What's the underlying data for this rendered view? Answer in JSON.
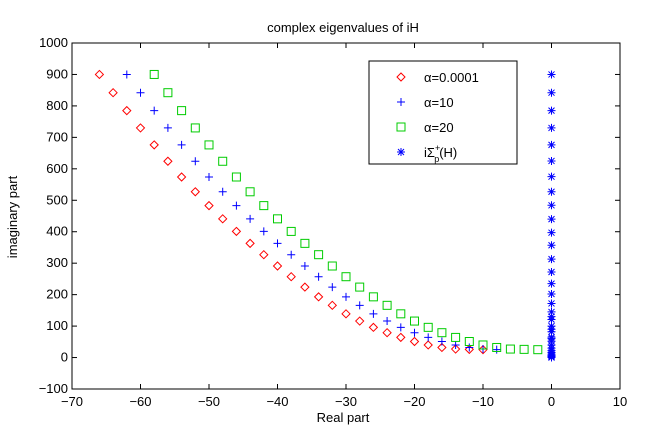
{
  "chart_data": {
    "type": "scatter",
    "title": "complex eigenvalues of iH",
    "xlabel": "Real part",
    "ylabel": "imaginary part",
    "xlim": [
      -70,
      10
    ],
    "ylim": [
      -100,
      1000
    ],
    "xticks": [
      "−70",
      "−60",
      "−50",
      "−40",
      "−30",
      "−20",
      "−10",
      "0",
      "10"
    ],
    "xtick_values": [
      -70,
      -60,
      -50,
      -40,
      -30,
      -20,
      -10,
      0,
      10
    ],
    "yticks": [
      "−100",
      "0",
      "100",
      "200",
      "300",
      "400",
      "500",
      "600",
      "700",
      "800",
      "900",
      "1000"
    ],
    "ytick_values": [
      -100,
      0,
      100,
      200,
      300,
      400,
      500,
      600,
      700,
      800,
      900,
      1000
    ],
    "grid": false,
    "legend_position": "top-right",
    "series": [
      {
        "name": "α=0.0001",
        "marker": "diamond",
        "color": "#ff0000",
        "x": [
          -66,
          -64,
          -62,
          -60,
          -58,
          -56,
          -54,
          -52,
          -50,
          -48,
          -46,
          -44,
          -42,
          -40,
          -38,
          -36,
          -34,
          -32,
          -30,
          -28,
          -26,
          -24,
          -22,
          -20,
          -18,
          -16,
          -14,
          -12,
          -10
        ],
        "y": [
          900,
          842,
          785,
          730,
          676,
          624,
          574,
          527,
          483,
          441,
          401,
          363,
          327,
          291,
          257,
          224,
          193,
          166,
          139,
          116,
          96,
          79,
          64,
          51,
          40,
          32,
          27,
          26,
          25
        ]
      },
      {
        "name": "α=10",
        "marker": "plus",
        "color": "#0000ff",
        "x": [
          -62,
          -60,
          -58,
          -56,
          -54,
          -52,
          -50,
          -48,
          -46,
          -44,
          -42,
          -40,
          -38,
          -36,
          -34,
          -32,
          -30,
          -28,
          -26,
          -24,
          -22,
          -20,
          -18,
          -16,
          -14,
          -12,
          -10,
          -8
        ],
        "y": [
          900,
          842,
          785,
          730,
          676,
          624,
          574,
          527,
          483,
          441,
          401,
          363,
          327,
          291,
          257,
          224,
          193,
          166,
          139,
          116,
          96,
          79,
          64,
          51,
          40,
          32,
          27,
          25
        ]
      },
      {
        "name": "α=20",
        "marker": "square",
        "color": "#00cc00",
        "x": [
          -58,
          -56,
          -54,
          -52,
          -50,
          -48,
          -46,
          -44,
          -42,
          -40,
          -38,
          -36,
          -34,
          -32,
          -30,
          -28,
          -26,
          -24,
          -22,
          -20,
          -18,
          -16,
          -14,
          -12,
          -10,
          -8,
          -6,
          -4,
          -2
        ],
        "y": [
          900,
          842,
          785,
          730,
          676,
          624,
          574,
          527,
          483,
          441,
          401,
          363,
          327,
          291,
          257,
          224,
          193,
          166,
          139,
          116,
          96,
          79,
          64,
          51,
          40,
          32,
          27,
          26,
          25
        ]
      },
      {
        "name": "iΣp+(H)",
        "legend_base": "iΣ",
        "legend_sup": "+",
        "legend_sub": "p",
        "legend_tail": "(H)",
        "marker": "star",
        "color": "#0000ff",
        "x": [
          0,
          0,
          0,
          0,
          0,
          0,
          0,
          0,
          0,
          0,
          0,
          0,
          0,
          0,
          0,
          0,
          0,
          0,
          0,
          0,
          0,
          0,
          0,
          0,
          0,
          0,
          0,
          0,
          0,
          0,
          0,
          0,
          0,
          0,
          0
        ],
        "y": [
          0,
          2,
          4,
          7,
          11,
          16,
          22,
          30,
          40,
          52,
          65,
          82,
          100,
          121,
          145,
          172,
          202,
          235,
          272,
          313,
          357,
          397,
          440,
          484,
          527,
          575,
          625,
          676,
          730,
          785,
          842,
          900,
          60,
          90,
          130
        ]
      }
    ]
  }
}
